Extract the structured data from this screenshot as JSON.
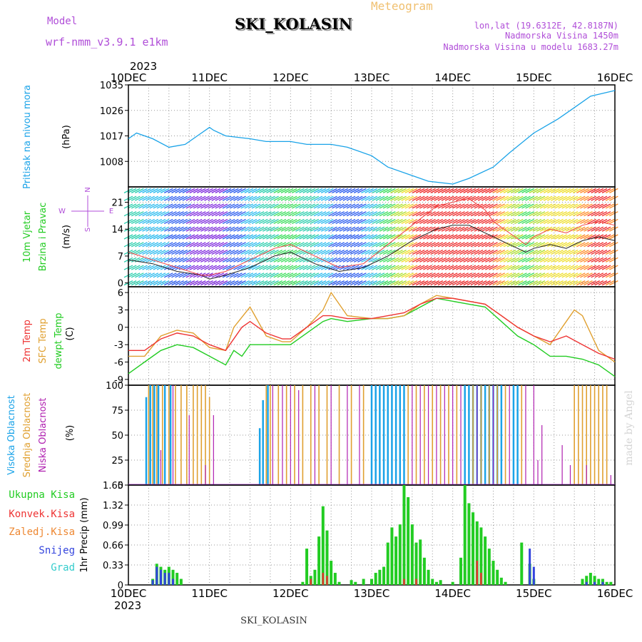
{
  "header": {
    "model_label": "Model",
    "model_name": "wrf-nmm_v3.9.1 e1km",
    "chart_kind": "Meteogram",
    "station": "SKI_KOLASIN",
    "coords": "lon,lat (19.6312E, 42.8187N)",
    "elevation": "Nadmorska Visina 1450m",
    "model_elevation": "Nadmorska Visina u modelu 1683.27m",
    "year_top": "2023",
    "year_bottom": "2023",
    "footer_station": "SKI_KOLASIN",
    "watermark": "made by Angel"
  },
  "colors": {
    "pressure": "#1aa3e8",
    "temp2m": "#ee3333",
    "sfc_temp": "#e0a030",
    "dewpoint": "#22cc22",
    "high_cloud": "#1aa3e8",
    "mid_cloud": "#e0a030",
    "low_cloud": "#b020b0",
    "precip_total": "#22cc22",
    "precip_conv": "#ee3333",
    "precip_ice": "#ee8833",
    "precip_snow": "#3344dd",
    "precip_grad": "#33cccc"
  },
  "chart_data": [
    {
      "type": "line",
      "panel": "pressure",
      "ylabel_lines": [
        "Pritisak na nivou mora",
        "(hPa)"
      ],
      "x_ticks": [
        "10DEC",
        "11DEC",
        "12DEC",
        "13DEC",
        "14DEC",
        "15DEC",
        "16DEC"
      ],
      "ylim": [
        999,
        1035
      ],
      "yticks": [
        1008,
        1017,
        1026,
        1035
      ],
      "grid": true,
      "series": [
        {
          "x": [
            0,
            0.1,
            0.3,
            0.5,
            0.7,
            0.85,
            1.0,
            1.05,
            1.2,
            1.5,
            1.7,
            2.0,
            2.2,
            2.5,
            2.7,
            3.0,
            3.2,
            3.5,
            3.7,
            4.0,
            4.2,
            4.5,
            4.7,
            5.0,
            5.3,
            5.5,
            5.7,
            6.0
          ],
          "y": [
            1016,
            1018,
            1016,
            1013,
            1014,
            1017,
            1020,
            1019,
            1017,
            1016,
            1015,
            1015,
            1014,
            1014,
            1013,
            1010,
            1006,
            1003,
            1001,
            1000,
            1002,
            1006,
            1011,
            1018,
            1023,
            1027,
            1031,
            1033
          ]
        }
      ]
    },
    {
      "type": "line",
      "panel": "wind",
      "ylabel_lines": [
        "10m Vjetar",
        "Brzina i Pravac",
        "(m/s)"
      ],
      "direction_key": [
        "W",
        "N",
        "E",
        "S"
      ],
      "x_ticks": [
        "10DEC",
        "11DEC",
        "12DEC",
        "13DEC",
        "14DEC",
        "15DEC",
        "16DEC"
      ],
      "ylim": [
        -1,
        25
      ],
      "yticks": [
        0,
        7,
        14,
        21
      ],
      "grid": true,
      "series": [
        {
          "name": "speed",
          "x": [
            0,
            0.3,
            0.6,
            0.9,
            1.0,
            1.2,
            1.5,
            1.8,
            2.0,
            2.3,
            2.6,
            2.9,
            3.2,
            3.5,
            3.8,
            4.0,
            4.2,
            4.4,
            4.5,
            4.7,
            4.9,
            5.0,
            5.2,
            5.4,
            5.6,
            5.8,
            6.0
          ],
          "y": [
            6,
            5,
            3,
            2,
            1,
            2,
            4,
            7,
            8,
            5,
            3,
            4,
            7,
            11,
            14,
            15,
            15,
            13,
            12,
            10,
            8,
            9,
            10,
            9,
            11,
            12,
            11
          ]
        },
        {
          "name": "gust",
          "x": [
            0,
            0.3,
            0.6,
            0.9,
            1.0,
            1.2,
            1.5,
            1.8,
            2.0,
            2.3,
            2.6,
            2.9,
            3.2,
            3.5,
            3.8,
            4.0,
            4.2,
            4.4,
            4.5,
            4.7,
            4.9,
            5.0,
            5.2,
            5.4,
            5.6,
            5.8,
            6.0
          ],
          "y": [
            8,
            6,
            4,
            2,
            2,
            3,
            6,
            9,
            10,
            7,
            4,
            5,
            10,
            15,
            20,
            21,
            22,
            19,
            16,
            13,
            10,
            12,
            14,
            13,
            15,
            16,
            15
          ]
        }
      ]
    },
    {
      "type": "line",
      "panel": "temperature",
      "ylabel_lines": [
        "2m Temp",
        "SFC Temp",
        "dewpt Temp",
        "(C)"
      ],
      "x_ticks": [
        "10DEC",
        "11DEC",
        "12DEC",
        "13DEC",
        "14DEC",
        "15DEC",
        "16DEC"
      ],
      "ylim": [
        -10,
        7
      ],
      "yticks": [
        -9,
        -6,
        -3,
        0,
        3,
        6
      ],
      "grid": true,
      "series": [
        {
          "name": "2m Temp",
          "x": [
            0,
            0.2,
            0.4,
            0.6,
            0.8,
            1.0,
            1.2,
            1.4,
            1.5,
            1.7,
            1.9,
            2.0,
            2.2,
            2.4,
            2.5,
            2.7,
            3.0,
            3.2,
            3.4,
            3.6,
            3.8,
            4.0,
            4.2,
            4.4,
            4.6,
            4.8,
            5.0,
            5.2,
            5.4,
            5.6,
            5.8,
            6.0
          ],
          "y": [
            -4,
            -4,
            -2,
            -1,
            -1.5,
            -3,
            -4,
            0,
            1,
            -1,
            -2,
            -2,
            0,
            2,
            2,
            1.5,
            1.5,
            2,
            2.5,
            4,
            5,
            5,
            4.5,
            4,
            2,
            0,
            -1.5,
            -2.5,
            -1.5,
            -3,
            -4.5,
            -5.5
          ]
        },
        {
          "name": "SFC Temp",
          "x": [
            0,
            0.2,
            0.4,
            0.6,
            0.8,
            1.0,
            1.2,
            1.3,
            1.5,
            1.7,
            1.9,
            2.0,
            2.2,
            2.4,
            2.5,
            2.7,
            3.0,
            3.2,
            3.4,
            3.6,
            3.8,
            4.0,
            4.2,
            4.4,
            4.6,
            4.8,
            5.0,
            5.2,
            5.4,
            5.5,
            5.6,
            5.8,
            6.0
          ],
          "y": [
            -5,
            -5,
            -1.5,
            -0.5,
            -1,
            -3.5,
            -4,
            0,
            3.5,
            -1.5,
            -2.5,
            -2.5,
            0,
            3,
            6,
            2,
            1.5,
            1.5,
            2,
            4,
            5.5,
            5,
            4.5,
            4,
            2,
            0,
            -1.5,
            -3,
            1,
            3,
            2,
            -4,
            -6
          ]
        },
        {
          "name": "dewpt Temp",
          "x": [
            0,
            0.2,
            0.4,
            0.6,
            0.8,
            1.0,
            1.2,
            1.3,
            1.4,
            1.5,
            1.7,
            1.9,
            2.0,
            2.2,
            2.4,
            2.5,
            2.7,
            3.0,
            3.2,
            3.4,
            3.6,
            3.8,
            4.0,
            4.2,
            4.4,
            4.6,
            4.8,
            5.0,
            5.2,
            5.4,
            5.6,
            5.8,
            6.0
          ],
          "y": [
            -8,
            -6,
            -4,
            -3,
            -3.5,
            -5,
            -6.5,
            -4,
            -5,
            -3,
            -3,
            -3,
            -3,
            -1,
            1,
            1.5,
            1,
            1.5,
            1.5,
            2,
            3.5,
            5,
            4.5,
            4,
            3.5,
            1,
            -1.5,
            -3,
            -5,
            -5,
            -5.5,
            -6.5,
            -8.5
          ]
        }
      ]
    },
    {
      "type": "bar",
      "panel": "cloud",
      "ylabel_lines": [
        "Visoka Oblacnost",
        "Srednja Oblacnost",
        "Niska Oblacnost",
        "(%)"
      ],
      "x_ticks": [
        "10DEC",
        "11DEC",
        "12DEC",
        "13DEC",
        "14DEC",
        "15DEC",
        "16DEC"
      ],
      "ylim": [
        0,
        100
      ],
      "yticks": [
        0,
        25,
        50,
        75,
        100
      ],
      "grid": true,
      "series": [
        {
          "name": "Visoka Oblacnost",
          "x": [
            0.22,
            0.27,
            0.32,
            0.37,
            0.45,
            0.52,
            1.62,
            1.66,
            1.72,
            3.0,
            3.05,
            3.1,
            3.15,
            3.2,
            3.25,
            3.3,
            3.35,
            3.4,
            4.15,
            4.2,
            4.25,
            4.3,
            4.35,
            4.4,
            4.45,
            4.5,
            4.55,
            4.6,
            4.75,
            4.8
          ],
          "values": [
            88,
            100,
            100,
            100,
            100,
            100,
            57,
            85,
            100,
            100,
            100,
            100,
            100,
            100,
            100,
            100,
            100,
            100,
            100,
            100,
            100,
            100,
            100,
            100,
            100,
            100,
            100,
            100,
            100,
            100
          ]
        },
        {
          "name": "Srednja Oblacnost",
          "x": [
            0.25,
            0.3,
            0.35,
            0.42,
            0.5,
            0.58,
            0.65,
            0.72,
            0.8,
            0.85,
            0.9,
            0.95,
            1.0,
            1.7,
            1.75,
            1.85,
            1.95,
            2.05,
            2.15,
            2.25,
            2.35,
            2.45,
            2.6,
            2.75,
            2.9,
            3.45,
            3.55,
            3.65,
            3.75,
            3.85,
            3.95,
            4.05,
            4.25,
            4.35,
            4.45,
            4.55,
            4.65,
            4.85,
            5.5,
            5.55,
            5.6,
            5.65,
            5.7,
            5.75,
            5.8,
            5.85,
            5.9
          ],
          "values": [
            100,
            100,
            100,
            100,
            100,
            100,
            100,
            100,
            100,
            100,
            100,
            100,
            88,
            100,
            100,
            100,
            100,
            100,
            100,
            100,
            100,
            100,
            100,
            100,
            100,
            100,
            100,
            100,
            100,
            100,
            100,
            100,
            100,
            100,
            100,
            100,
            100,
            100,
            100,
            100,
            100,
            100,
            100,
            100,
            100,
            100,
            100
          ]
        },
        {
          "name": "Niska Oblacnost",
          "x": [
            0.4,
            0.55,
            0.75,
            0.95,
            1.05,
            1.78,
            1.9,
            2.0,
            2.1,
            2.3,
            2.5,
            2.7,
            2.85,
            3.5,
            3.6,
            3.7,
            3.8,
            3.9,
            4.0,
            4.1,
            4.3,
            4.5,
            4.7,
            4.9,
            5.0,
            5.05,
            5.1,
            5.35,
            5.45,
            5.65,
            5.95
          ],
          "values": [
            35,
            100,
            70,
            20,
            70,
            100,
            100,
            100,
            95,
            100,
            100,
            100,
            100,
            100,
            100,
            100,
            100,
            100,
            100,
            100,
            100,
            100,
            100,
            100,
            100,
            25,
            60,
            40,
            20,
            20,
            10
          ]
        }
      ]
    },
    {
      "type": "bar",
      "panel": "precipitation",
      "ylabel_lines": [
        "1hr Precip (mm)"
      ],
      "legend": [
        "Ukupna Kisa",
        "Konvek.Kisa",
        "Zaledj.Kisa",
        "Snijeg",
        "Grad"
      ],
      "x_ticks": [
        "10DEC",
        "11DEC",
        "12DEC",
        "13DEC",
        "14DEC",
        "15DEC",
        "16DEC"
      ],
      "ylim": [
        0,
        1.65
      ],
      "yticks": [
        "0",
        "0.33",
        "0.66",
        "0.99",
        "1.32",
        "1.65"
      ],
      "grid": true,
      "series": [
        {
          "name": "Ukupna Kisa",
          "x": [
            0.3,
            0.35,
            0.4,
            0.45,
            0.5,
            0.55,
            0.6,
            0.65,
            2.15,
            2.2,
            2.25,
            2.3,
            2.35,
            2.4,
            2.45,
            2.5,
            2.55,
            2.6,
            2.75,
            2.8,
            2.9,
            3.0,
            3.05,
            3.1,
            3.15,
            3.2,
            3.25,
            3.3,
            3.35,
            3.4,
            3.45,
            3.5,
            3.55,
            3.6,
            3.65,
            3.7,
            3.75,
            3.8,
            3.85,
            4.0,
            4.1,
            4.15,
            4.2,
            4.25,
            4.3,
            4.35,
            4.4,
            4.45,
            4.5,
            4.55,
            4.6,
            4.65,
            4.85,
            4.95,
            5.0,
            5.6,
            5.65,
            5.7,
            5.75,
            5.8,
            5.85,
            5.9,
            5.95
          ],
          "values": [
            0.1,
            0.35,
            0.3,
            0.25,
            0.3,
            0.25,
            0.2,
            0.1,
            0.05,
            0.6,
            0.15,
            0.25,
            0.8,
            1.3,
            0.9,
            0.4,
            0.2,
            0.05,
            0.08,
            0.05,
            0.1,
            0.1,
            0.2,
            0.25,
            0.3,
            0.7,
            0.95,
            0.8,
            1.0,
            1.65,
            1.45,
            1.0,
            0.7,
            0.75,
            0.45,
            0.25,
            0.1,
            0.05,
            0.08,
            0.05,
            0.45,
            1.65,
            1.35,
            1.2,
            1.05,
            0.95,
            0.8,
            0.6,
            0.4,
            0.25,
            0.12,
            0.05,
            0.7,
            0.35,
            0.1,
            0.1,
            0.15,
            0.2,
            0.15,
            0.1,
            0.1,
            0.05,
            0.05
          ]
        },
        {
          "name": "Snijeg",
          "x": [
            0.3,
            0.35,
            0.4,
            0.45,
            0.5,
            0.55,
            4.95,
            5.0,
            5.65,
            5.75,
            5.85
          ],
          "values": [
            0.08,
            0.3,
            0.25,
            0.2,
            0.2,
            0.1,
            0.6,
            0.3,
            0.05,
            0.05,
            0.05
          ]
        },
        {
          "name": "Konvek.Kisa",
          "x": [
            2.25,
            2.4,
            2.45,
            3.4,
            3.55,
            4.3,
            4.35
          ],
          "values": [
            0.1,
            0.2,
            0.15,
            0.1,
            0.1,
            0.4,
            0.2
          ]
        }
      ]
    }
  ]
}
